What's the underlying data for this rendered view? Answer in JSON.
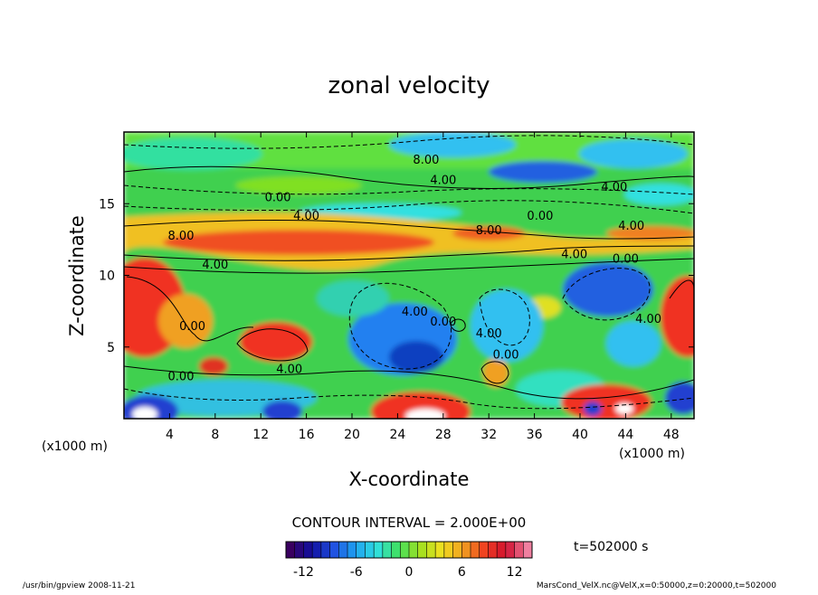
{
  "chart_data": {
    "type": "heatmap",
    "title": "zonal velocity",
    "xlabel": "X-coordinate",
    "ylabel": "Z-coordinate",
    "x_unit_left": "(x1000 m)",
    "x_unit_right": "(x1000 m)",
    "x_ticks": [
      "4",
      "8",
      "12",
      "16",
      "20",
      "24",
      "28",
      "32",
      "36",
      "40",
      "44",
      "48"
    ],
    "y_ticks": [
      "5",
      "10",
      "15"
    ],
    "xlim": [
      0,
      50
    ],
    "ylim": [
      0,
      20
    ],
    "contour_interval_text": "CONTOUR INTERVAL = 2.000E+00",
    "time_label": "t=502000 s",
    "colorbar": {
      "range": [
        -14,
        14
      ],
      "ticks": [
        "-12",
        "-6",
        "0",
        "6",
        "12"
      ],
      "colors": [
        "#3a0060",
        "#1010a0",
        "#2050e0",
        "#1ea0f0",
        "#30e0e0",
        "#40e060",
        "#a0e020",
        "#f0e020",
        "#f0a020",
        "#f04020",
        "#d01030",
        "#f080a0"
      ]
    },
    "contour_labels": [
      {
        "text": "8.00",
        "x": 26.5,
        "z": 18.1
      },
      {
        "text": "4.00",
        "x": 28.0,
        "z": 16.7
      },
      {
        "text": "4.00",
        "x": 43.0,
        "z": 16.2
      },
      {
        "text": "0.00",
        "x": 13.5,
        "z": 15.5
      },
      {
        "text": "4.00",
        "x": 16.0,
        "z": 14.2
      },
      {
        "text": "0.00",
        "x": 36.5,
        "z": 14.2
      },
      {
        "text": "4.00",
        "x": 44.5,
        "z": 13.5
      },
      {
        "text": "8.00",
        "x": 5.0,
        "z": 12.8
      },
      {
        "text": "8.00",
        "x": 32.0,
        "z": 13.2
      },
      {
        "text": "4.00",
        "x": 39.5,
        "z": 11.5
      },
      {
        "text": "0.00",
        "x": 44.0,
        "z": 11.2
      },
      {
        "text": "4.00",
        "x": 8.0,
        "z": 10.8
      },
      {
        "text": "4.00",
        "x": 46.0,
        "z": 7.0
      },
      {
        "text": "4.00",
        "x": 25.5,
        "z": 7.5
      },
      {
        "text": "0.00",
        "x": 28.0,
        "z": 6.8
      },
      {
        "text": "0.00",
        "x": 6.0,
        "z": 6.5
      },
      {
        "text": "4.00",
        "x": 32.0,
        "z": 6.0
      },
      {
        "text": "0.00",
        "x": 33.5,
        "z": 4.5
      },
      {
        "text": "4.00",
        "x": 14.5,
        "z": 3.5
      },
      {
        "text": "0.00",
        "x": 5.0,
        "z": 3.0
      }
    ]
  },
  "footer": {
    "left": "/usr/bin/gpview   2008-11-21",
    "right": "MarsCond_VelX.nc@VelX,x=0:50000,z=0:20000,t=502000"
  }
}
